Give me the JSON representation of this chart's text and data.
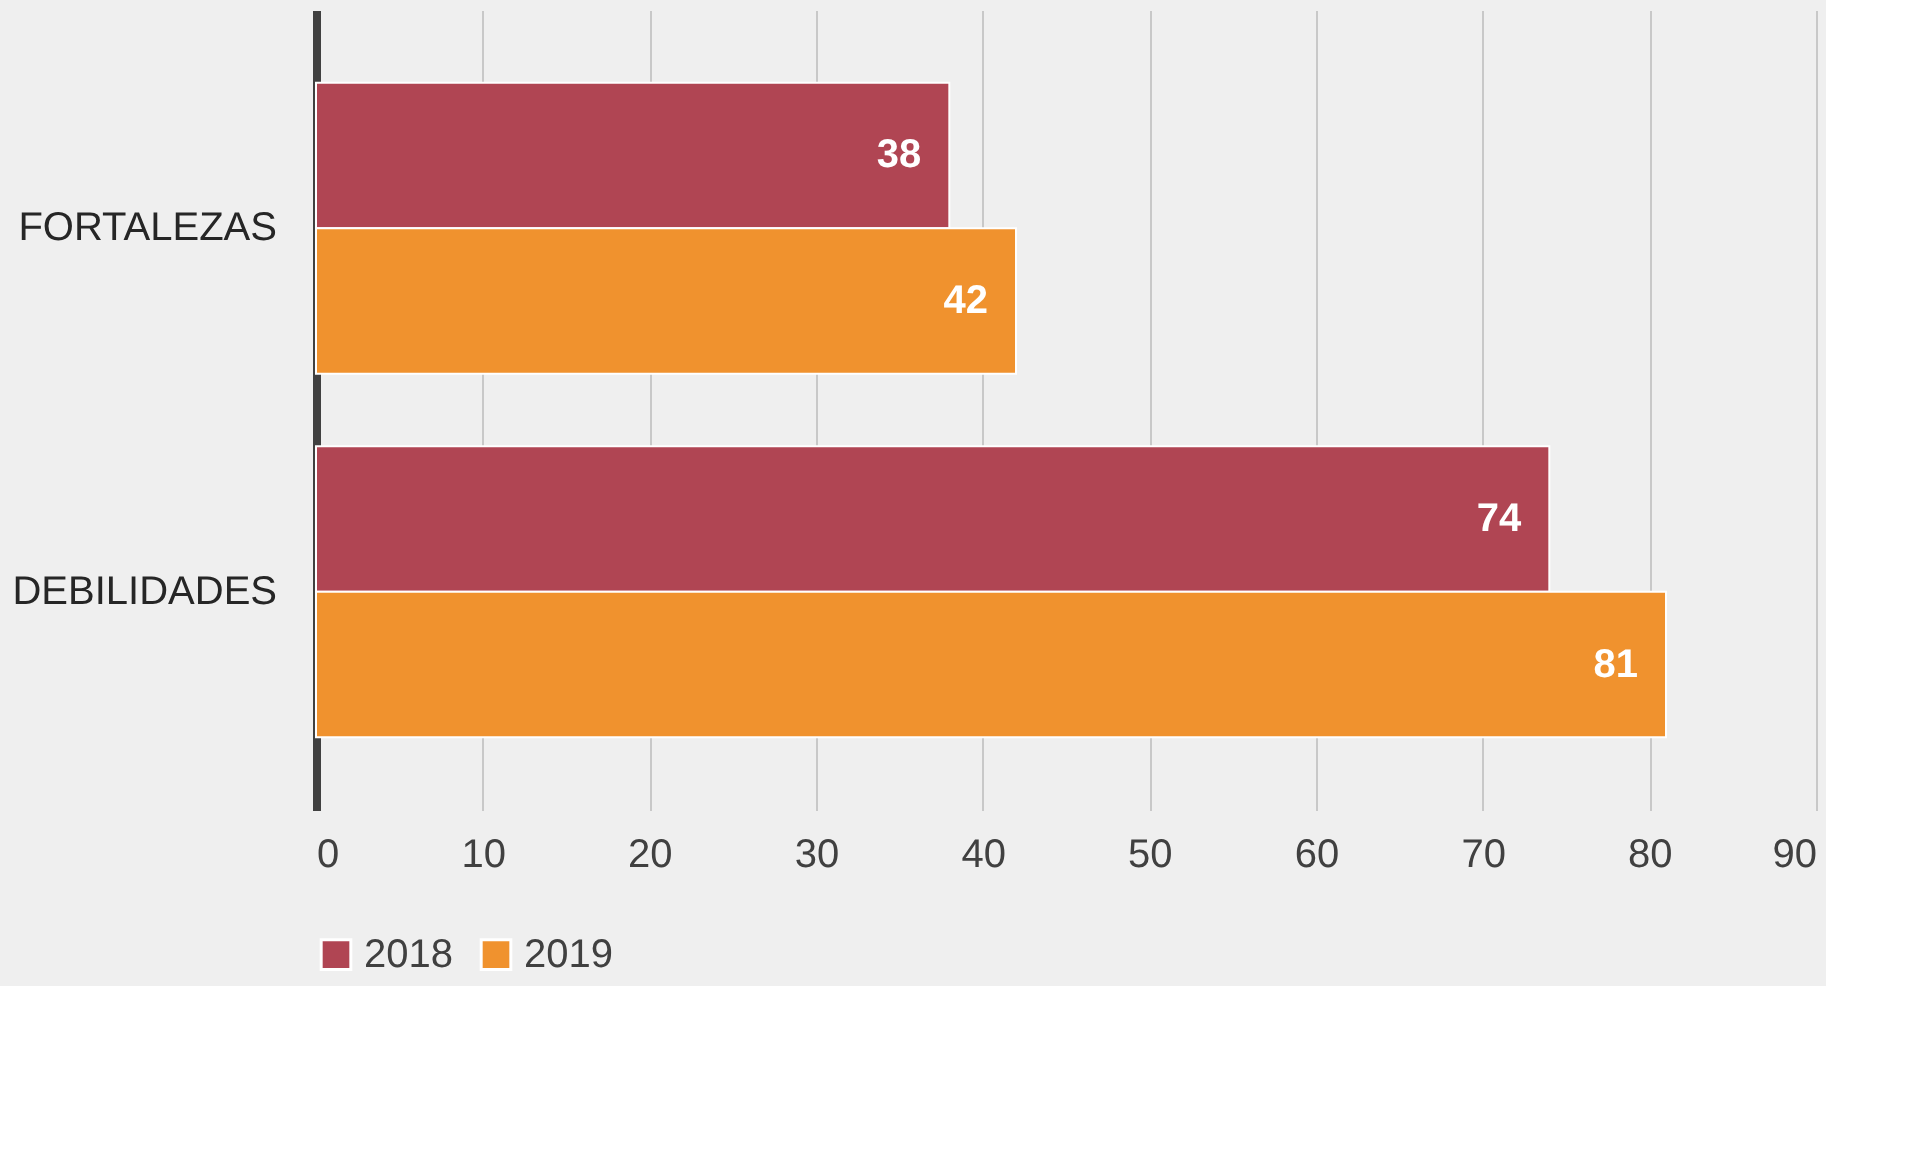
{
  "chart_data": {
    "type": "bar",
    "orientation": "horizontal",
    "categories": [
      "FORTALEZAS",
      "DEBILIDADES"
    ],
    "series": [
      {
        "name": "2018",
        "color": "#b04553",
        "values": [
          38,
          74
        ]
      },
      {
        "name": "2019",
        "color": "#f0922e",
        "values": [
          42,
          81
        ]
      }
    ],
    "xlim": [
      0,
      90
    ],
    "xticks": [
      0,
      10,
      20,
      30,
      40,
      50,
      60,
      70,
      80,
      90
    ],
    "grid": "x",
    "legend": "bottom",
    "data_labels": true
  }
}
